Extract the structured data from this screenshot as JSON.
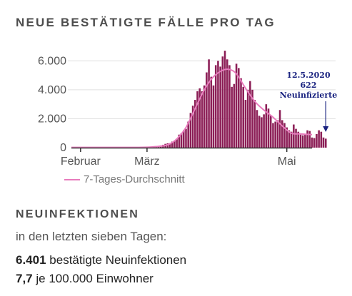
{
  "header": {
    "title": "NEUE BESTÄTIGTE FÄLLE PRO TAG"
  },
  "legend": {
    "label": "7-Tages-Durchschnitt",
    "color": "#e87bbd"
  },
  "annotation": {
    "date": "12.5.2020",
    "value": "622",
    "label": "Neuinfizierte",
    "color": "#1a2380"
  },
  "summary": {
    "title": "NEUINFEKTIONEN",
    "subtitle": "in den letzten sieben Tagen:",
    "cases_value": "6.401",
    "cases_text": "bestätigte Neuinfektionen",
    "rate_value": "7,7",
    "rate_text": "je 100.000 Einwohner"
  },
  "colors": {
    "bar": "#8c1f57",
    "average": "#e87bbd",
    "grid": "#e0e0e0",
    "axis": "#333333"
  },
  "chart_data": {
    "type": "bar",
    "title": "NEUE BESTÄTIGTE FÄLLE PRO TAG",
    "x_start": "2020-01-28",
    "x_end": "2020-05-12",
    "x_ticks": [
      {
        "date": "2020-02-01",
        "label": "Februar"
      },
      {
        "date": "2020-03-01",
        "label": "März"
      },
      {
        "date": "2020-05-01",
        "label": "Mai"
      }
    ],
    "y_ticks": [
      {
        "value": 0,
        "label": "0"
      },
      {
        "value": 2000,
        "label": "2.000"
      },
      {
        "value": 4000,
        "label": "4.000"
      },
      {
        "value": 6000,
        "label": "6.000"
      }
    ],
    "ylim": [
      0,
      7000
    ],
    "grid": true,
    "bars_start": "2020-02-25",
    "values": [
      4,
      2,
      8,
      26,
      32,
      40,
      45,
      52,
      60,
      90,
      110,
      152,
      199,
      262,
      300,
      310,
      418,
      480,
      580,
      900,
      1000,
      1200,
      1300,
      1800,
      2400,
      2900,
      3300,
      3900,
      4100,
      3900,
      4300,
      5200,
      6100,
      4900,
      4300,
      5700,
      6000,
      5600,
      6300,
      6700,
      6100,
      5700,
      4200,
      4400,
      5800,
      5500,
      4800,
      4200,
      3300,
      4000,
      4600,
      4000,
      3300,
      2600,
      2200,
      2100,
      2300,
      3000,
      2700,
      2200,
      1700,
      1800,
      1900,
      2600,
      1900,
      1700,
      1400,
      1200,
      1100,
      1600,
      1300,
      1100,
      900,
      850,
      950,
      1200,
      1150,
      700,
      660,
      940,
      1200,
      1100,
      700,
      622
    ],
    "average": [
      {
        "date": "2020-01-28",
        "value": 20
      },
      {
        "date": "2020-02-25",
        "value": 20
      },
      {
        "date": "2020-03-04",
        "value": 60
      },
      {
        "date": "2020-03-10",
        "value": 200
      },
      {
        "date": "2020-03-14",
        "value": 600
      },
      {
        "date": "2020-03-18",
        "value": 1400
      },
      {
        "date": "2020-03-22",
        "value": 2700
      },
      {
        "date": "2020-03-26",
        "value": 4000
      },
      {
        "date": "2020-03-30",
        "value": 4900
      },
      {
        "date": "2020-04-03",
        "value": 5350
      },
      {
        "date": "2020-04-06",
        "value": 5400
      },
      {
        "date": "2020-04-09",
        "value": 5100
      },
      {
        "date": "2020-04-13",
        "value": 4100
      },
      {
        "date": "2020-04-17",
        "value": 3200
      },
      {
        "date": "2020-04-21",
        "value": 2600
      },
      {
        "date": "2020-04-25",
        "value": 2100
      },
      {
        "date": "2020-04-29",
        "value": 1500
      },
      {
        "date": "2020-05-03",
        "value": 1000
      },
      {
        "date": "2020-05-07",
        "value": 950
      },
      {
        "date": "2020-05-12",
        "value": 900
      }
    ]
  }
}
